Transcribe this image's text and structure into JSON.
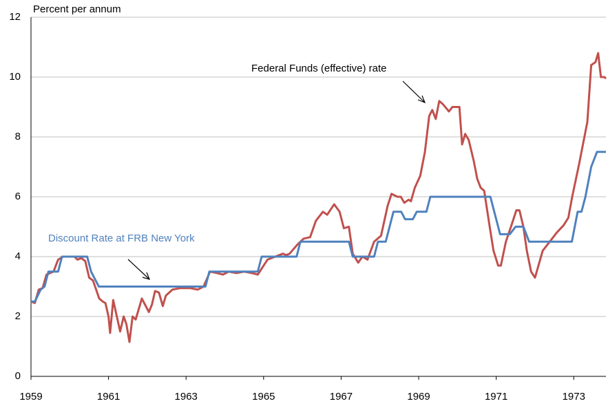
{
  "chart_data": {
    "type": "line",
    "y_label": "Percent per annum",
    "annotations": [
      "Federal Funds (effective) rate",
      "Discount Rate at FRB New York"
    ],
    "xlim": [
      1959,
      1973.83
    ],
    "xticks": [
      1959,
      1961,
      1963,
      1965,
      1967,
      1969,
      1971,
      1973
    ],
    "ylim": [
      0,
      12
    ],
    "yticks": [
      0,
      2,
      4,
      6,
      8,
      10,
      12
    ],
    "grid": true,
    "series": [
      {
        "name": "Federal Funds (effective) rate",
        "color": "#c0504d",
        "x": [
          1959.0,
          1959.1,
          1959.2,
          1959.3,
          1959.4,
          1959.58,
          1959.7,
          1959.83,
          1960.12,
          1960.2,
          1960.3,
          1960.4,
          1960.5,
          1960.6,
          1960.68,
          1960.76,
          1960.85,
          1960.92,
          1961.0,
          1961.04,
          1961.12,
          1961.3,
          1961.39,
          1961.46,
          1961.54,
          1961.62,
          1961.7,
          1961.86,
          1962.04,
          1962.12,
          1962.2,
          1962.3,
          1962.4,
          1962.48,
          1962.65,
          1962.86,
          1963.1,
          1963.3,
          1963.45,
          1963.62,
          1963.8,
          1963.95,
          1964.1,
          1964.3,
          1964.5,
          1964.7,
          1964.85,
          1964.95,
          1965.1,
          1965.3,
          1965.5,
          1965.58,
          1965.67,
          1965.87,
          1966.03,
          1966.2,
          1966.35,
          1966.53,
          1966.64,
          1966.82,
          1966.96,
          1967.07,
          1967.2,
          1967.3,
          1967.44,
          1967.55,
          1967.68,
          1967.85,
          1968.03,
          1968.2,
          1968.3,
          1968.45,
          1968.54,
          1968.63,
          1968.74,
          1968.8,
          1968.9,
          1969.04,
          1969.16,
          1969.27,
          1969.35,
          1969.44,
          1969.53,
          1969.62,
          1969.78,
          1969.87,
          1970.05,
          1970.12,
          1970.2,
          1970.29,
          1970.42,
          1970.51,
          1970.6,
          1970.69,
          1970.82,
          1970.93,
          1971.05,
          1971.12,
          1971.25,
          1971.38,
          1971.52,
          1971.6,
          1971.7,
          1971.79,
          1971.9,
          1972.0,
          1972.2,
          1972.38,
          1972.56,
          1972.74,
          1972.86,
          1972.96,
          1973.14,
          1973.35,
          1973.45,
          1973.56,
          1973.63,
          1973.7,
          1973.79,
          1973.83
        ],
        "values": [
          2.5,
          2.45,
          2.9,
          2.95,
          3.4,
          3.5,
          3.9,
          4.0,
          4.0,
          3.9,
          3.95,
          3.85,
          3.3,
          3.2,
          2.9,
          2.6,
          2.5,
          2.45,
          2.0,
          1.45,
          2.55,
          1.5,
          2.0,
          1.75,
          1.15,
          2.0,
          1.9,
          2.6,
          2.15,
          2.4,
          2.85,
          2.8,
          2.35,
          2.7,
          2.9,
          2.95,
          2.95,
          2.9,
          3.0,
          3.5,
          3.45,
          3.4,
          3.5,
          3.45,
          3.5,
          3.45,
          3.4,
          3.6,
          3.9,
          4.0,
          4.1,
          4.05,
          4.1,
          4.4,
          4.6,
          4.65,
          5.2,
          5.5,
          5.4,
          5.75,
          5.5,
          4.95,
          5.0,
          4.1,
          3.8,
          4.0,
          3.9,
          4.5,
          4.7,
          5.7,
          6.1,
          6.0,
          6.0,
          5.8,
          5.9,
          5.85,
          6.3,
          6.7,
          7.5,
          8.7,
          8.9,
          8.6,
          9.2,
          9.1,
          8.85,
          9.0,
          9.0,
          7.75,
          8.1,
          7.9,
          7.2,
          6.6,
          6.3,
          6.2,
          5.1,
          4.2,
          3.7,
          3.7,
          4.5,
          5.0,
          5.55,
          5.55,
          5.0,
          4.2,
          3.5,
          3.3,
          4.2,
          4.5,
          4.8,
          5.05,
          5.3,
          6.0,
          7.1,
          8.5,
          10.4,
          10.5,
          10.8,
          10.0,
          10.0,
          9.95
        ]
      },
      {
        "name": "Discount Rate at FRB New York",
        "color": "#4f81bd",
        "x": [
          1959.0,
          1959.1,
          1959.25,
          1959.35,
          1959.45,
          1959.7,
          1959.8,
          1960.45,
          1960.55,
          1960.75,
          1963.5,
          1963.6,
          1964.85,
          1964.95,
          1965.85,
          1965.95,
          1967.2,
          1967.3,
          1967.85,
          1967.95,
          1968.15,
          1968.35,
          1968.55,
          1968.65,
          1968.85,
          1968.95,
          1969.2,
          1969.3,
          1970.85,
          1970.95,
          1971.1,
          1971.35,
          1971.5,
          1971.7,
          1971.85,
          1972.95,
          1973.1,
          1973.2,
          1973.3,
          1973.45,
          1973.6,
          1973.83
        ],
        "values": [
          2.5,
          2.5,
          2.9,
          3.0,
          3.5,
          3.5,
          4.0,
          4.0,
          3.5,
          3.0,
          3.0,
          3.5,
          3.5,
          4.0,
          4.0,
          4.5,
          4.5,
          4.0,
          4.0,
          4.5,
          4.5,
          5.5,
          5.5,
          5.25,
          5.25,
          5.5,
          5.5,
          6.0,
          6.0,
          5.5,
          4.75,
          4.75,
          5.0,
          5.0,
          4.5,
          4.5,
          5.5,
          5.5,
          6.0,
          7.0,
          7.5,
          7.5
        ]
      }
    ]
  }
}
